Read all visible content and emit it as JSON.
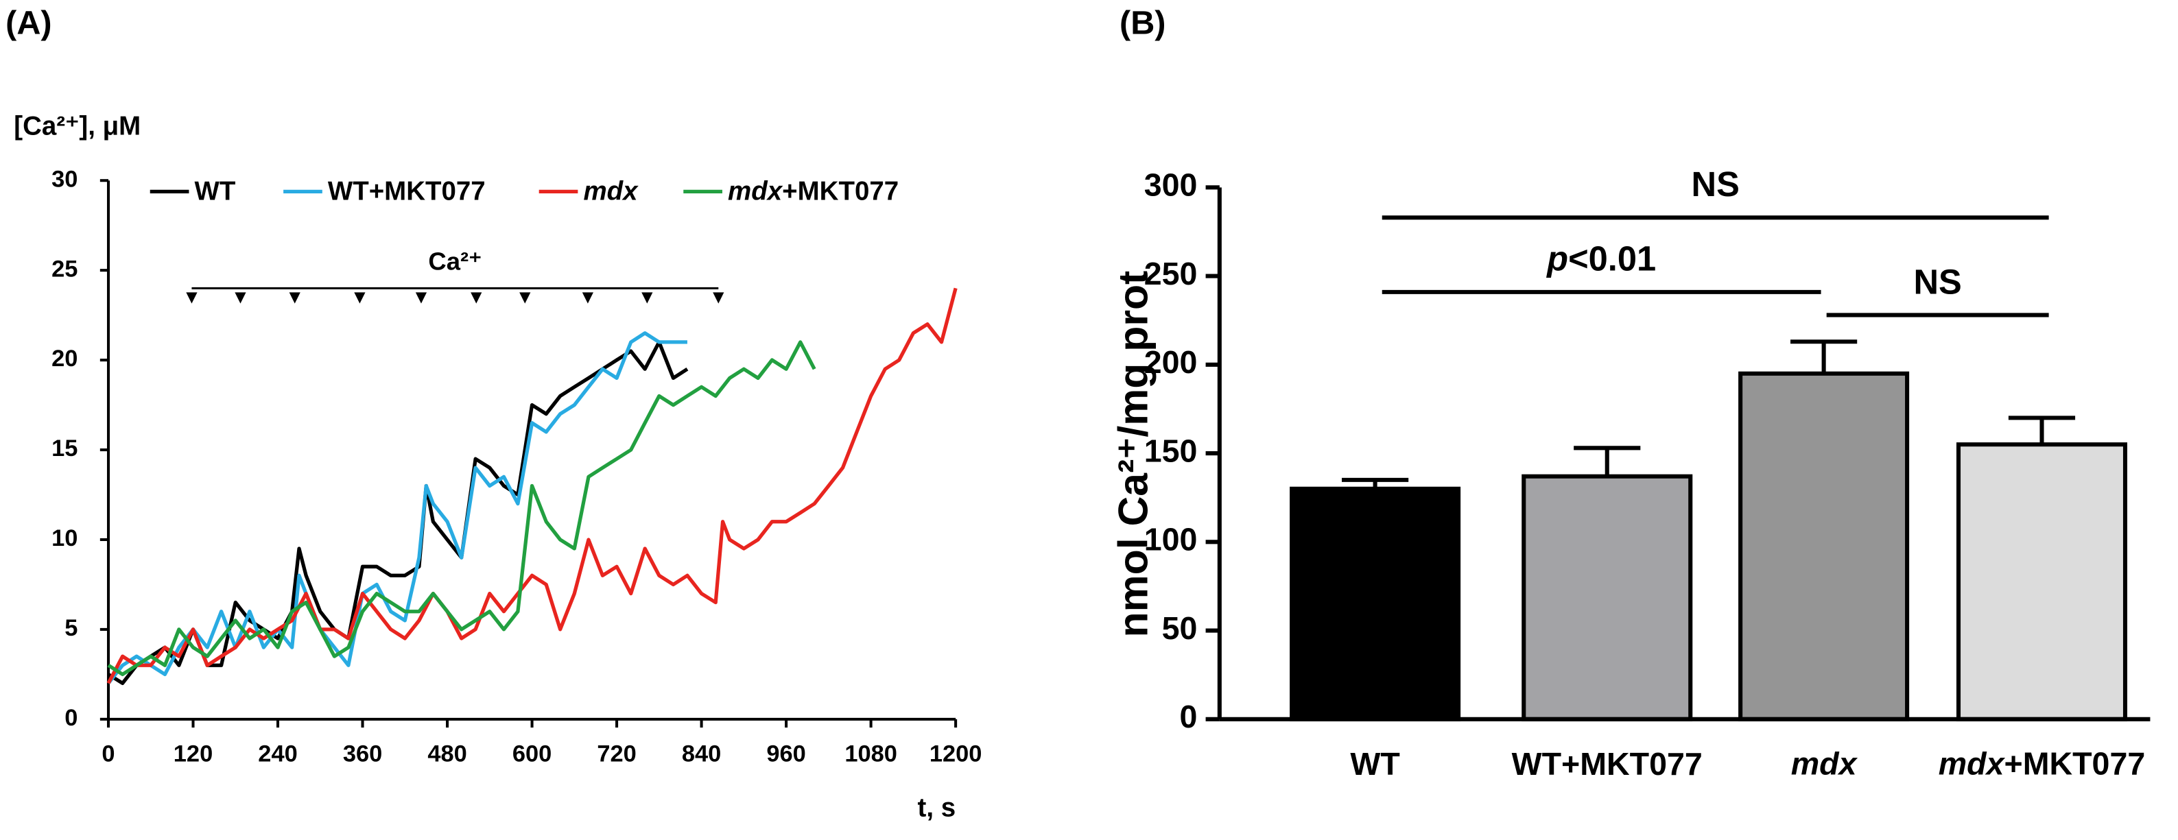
{
  "chart_data": [
    {
      "type": "line",
      "panel_label": "(A)",
      "ylabel": "[Ca²⁺], μM",
      "xlabel": "t, s",
      "xlim": [
        0,
        1200
      ],
      "xticks": [
        0,
        120,
        240,
        360,
        480,
        600,
        720,
        840,
        960,
        1080,
        1200
      ],
      "ylim": [
        0,
        30
      ],
      "yticks": [
        0,
        5,
        10,
        15,
        20,
        25,
        30
      ],
      "additions": {
        "label": "Ca²⁺",
        "y": 24,
        "x": [
          118,
          187,
          264,
          356,
          443,
          521,
          590,
          679,
          763,
          864
        ]
      },
      "series": [
        {
          "name": "WT",
          "color": "#000000",
          "x": [
            0,
            20,
            40,
            60,
            80,
            100,
            120,
            140,
            160,
            180,
            200,
            220,
            240,
            260,
            270,
            280,
            300,
            320,
            340,
            360,
            380,
            400,
            420,
            440,
            450,
            460,
            480,
            500,
            520,
            540,
            560,
            580,
            600,
            620,
            640,
            660,
            680,
            700,
            720,
            740,
            760,
            780,
            800,
            820
          ],
          "values": [
            2.5,
            2,
            3,
            3.5,
            4,
            3,
            5,
            3,
            3,
            6.5,
            5.5,
            5,
            4.5,
            6,
            9.5,
            8,
            6,
            5,
            4.5,
            8.5,
            8.5,
            8,
            8,
            8.5,
            13,
            11,
            10,
            9,
            14.5,
            14,
            13,
            12.5,
            17.5,
            17,
            18,
            18.5,
            19,
            19.5,
            20,
            20.5,
            19.5,
            21,
            19,
            19.5
          ]
        },
        {
          "name": "WT+MKT077",
          "color": "#29abe2",
          "x": [
            0,
            20,
            40,
            60,
            80,
            100,
            120,
            140,
            160,
            180,
            200,
            220,
            240,
            260,
            270,
            280,
            300,
            320,
            340,
            360,
            380,
            400,
            420,
            440,
            450,
            460,
            480,
            500,
            520,
            540,
            560,
            580,
            600,
            620,
            640,
            660,
            680,
            700,
            720,
            740,
            760,
            780,
            800,
            820
          ],
          "values": [
            2,
            3,
            3.5,
            3,
            2.5,
            4,
            5,
            4,
            6,
            4,
            6,
            4,
            5,
            4,
            8,
            7,
            5,
            4,
            3,
            7,
            7.5,
            6,
            5.5,
            9,
            13,
            12,
            11,
            9,
            14,
            13,
            13.5,
            12,
            16.5,
            16,
            17,
            17.5,
            18.5,
            19.5,
            19,
            21,
            21.5,
            21,
            21,
            21
          ]
        },
        {
          "name": "mdx",
          "color": "#e8251f",
          "x": [
            0,
            20,
            40,
            60,
            80,
            100,
            120,
            140,
            160,
            180,
            200,
            220,
            240,
            260,
            280,
            300,
            320,
            340,
            360,
            380,
            400,
            420,
            440,
            460,
            480,
            500,
            520,
            540,
            560,
            580,
            600,
            620,
            640,
            660,
            680,
            700,
            720,
            740,
            760,
            780,
            800,
            820,
            840,
            860,
            870,
            880,
            900,
            920,
            940,
            960,
            980,
            1000,
            1020,
            1040,
            1060,
            1080,
            1100,
            1120,
            1140,
            1160,
            1180,
            1200
          ],
          "values": [
            2,
            3.5,
            3,
            3,
            4,
            3.5,
            5,
            3,
            3.5,
            4,
            5,
            4.5,
            5,
            5.5,
            7,
            5,
            5,
            4.5,
            7,
            6,
            5,
            4.5,
            5.5,
            7,
            6,
            4.5,
            5,
            7,
            6,
            7,
            8,
            7.5,
            5,
            7,
            10,
            8,
            8.5,
            7,
            9.5,
            8,
            7.5,
            8,
            7,
            6.5,
            11,
            10,
            9.5,
            10,
            11,
            11,
            11.5,
            12,
            13,
            14,
            16,
            18,
            19.5,
            20,
            21.5,
            22,
            21,
            24
          ]
        },
        {
          "name": "mdx+MKT077",
          "color": "#22a040",
          "x": [
            0,
            20,
            40,
            60,
            80,
            100,
            120,
            140,
            160,
            180,
            200,
            220,
            240,
            260,
            280,
            300,
            320,
            340,
            360,
            380,
            400,
            420,
            440,
            460,
            480,
            500,
            520,
            540,
            560,
            580,
            600,
            620,
            640,
            660,
            680,
            700,
            720,
            740,
            760,
            780,
            800,
            820,
            840,
            860,
            880,
            900,
            920,
            940,
            960,
            980,
            1000
          ],
          "values": [
            3,
            2.5,
            3,
            3.5,
            3,
            5,
            4,
            3.5,
            4.5,
            5.5,
            4.5,
            5,
            4,
            6,
            6.5,
            5,
            3.5,
            4,
            6,
            7,
            6.5,
            6,
            6,
            7,
            6,
            5,
            5.5,
            6,
            5,
            6,
            13,
            11,
            10,
            9.5,
            13.5,
            14,
            14.5,
            15,
            16.5,
            18,
            17.5,
            18,
            18.5,
            18,
            19,
            19.5,
            19,
            20,
            19.5,
            21,
            19.5
          ]
        }
      ]
    },
    {
      "type": "bar",
      "panel_label": "(B)",
      "ylabel": "nmol Ca²⁺/mg prot",
      "categories": [
        "WT",
        "WT+MKT077",
        "mdx",
        "mdx+MKT077"
      ],
      "values": [
        130,
        137,
        195,
        155
      ],
      "errors": [
        5,
        16,
        18,
        15
      ],
      "colors": [
        "#000000",
        "#a3a3a6",
        "#959595",
        "#dcdcdc"
      ],
      "ylim": [
        0,
        300
      ],
      "yticks": [
        0,
        50,
        100,
        150,
        200,
        250,
        300
      ],
      "brackets": [
        {
          "label": "NS",
          "from": 0,
          "to": 3,
          "y": 283
        },
        {
          "label": "p<0.01",
          "from": 0,
          "to": 2,
          "y": 241
        },
        {
          "label": "NS",
          "from": 2,
          "to": 3,
          "y": 228
        }
      ]
    }
  ]
}
